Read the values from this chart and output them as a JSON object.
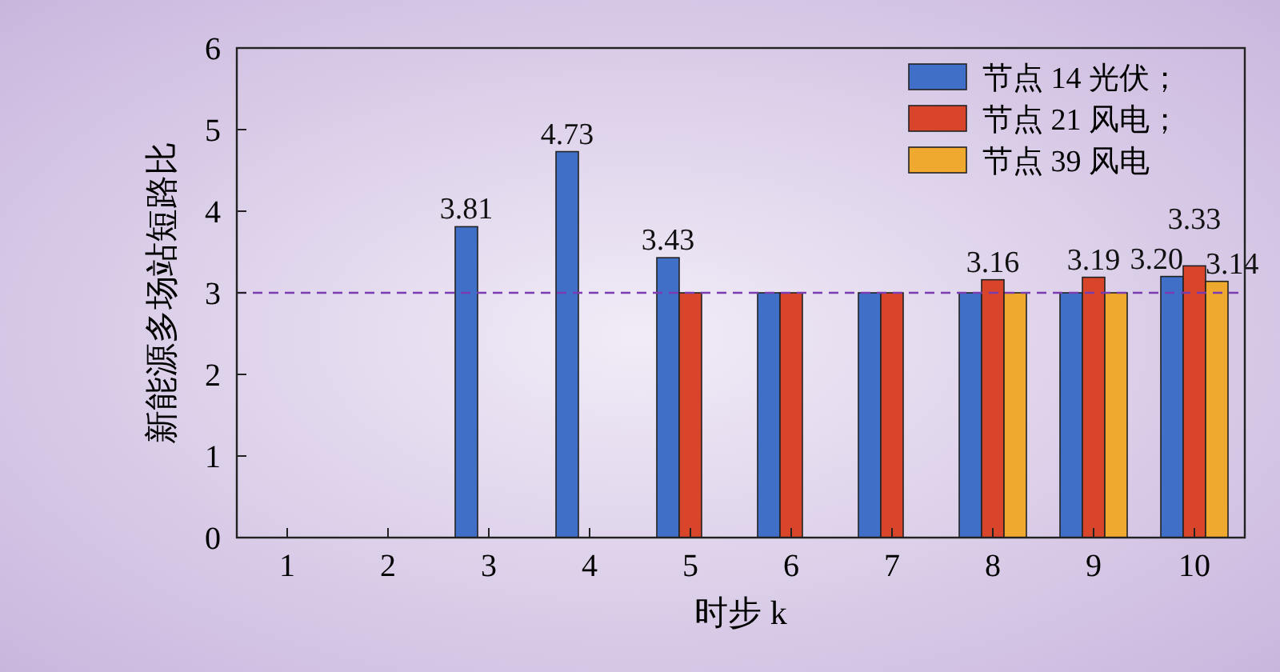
{
  "chart_data": {
    "type": "bar",
    "xlabel": "时步 k",
    "ylabel": "新能源多场站短路比",
    "categories": [
      "1",
      "2",
      "3",
      "4",
      "5",
      "6",
      "7",
      "8",
      "9",
      "10"
    ],
    "series": [
      {
        "name": "节点 14 光伏；",
        "color": "#3f6fc6",
        "values": [
          null,
          null,
          3.81,
          4.73,
          3.43,
          3,
          3,
          3,
          3,
          3.2
        ],
        "value_labels": [
          null,
          null,
          "3.81",
          "4.73",
          "3.43",
          null,
          null,
          null,
          null,
          "3.20"
        ]
      },
      {
        "name": "节点 21 风电；",
        "color": "#d8452b",
        "values": [
          null,
          null,
          null,
          null,
          3,
          3,
          3,
          3.16,
          3.19,
          3.33
        ],
        "value_labels": [
          null,
          null,
          null,
          null,
          null,
          null,
          null,
          "3.16",
          "3.19",
          "3.33"
        ]
      },
      {
        "name": "节点 39 风电",
        "color": "#efa92f",
        "values": [
          null,
          null,
          null,
          null,
          null,
          null,
          null,
          3,
          3,
          3.14
        ],
        "value_labels": [
          null,
          null,
          null,
          null,
          null,
          null,
          null,
          null,
          null,
          "3.14"
        ]
      }
    ],
    "ylim": [
      0,
      6
    ],
    "yticks": [
      0,
      1,
      2,
      3,
      4,
      5,
      6
    ],
    "grid": false,
    "legend": "top right",
    "ref_lines": [
      {
        "axis": "y",
        "value": 3,
        "color": "#7a3cb0",
        "line_style": "dashed"
      }
    ]
  }
}
